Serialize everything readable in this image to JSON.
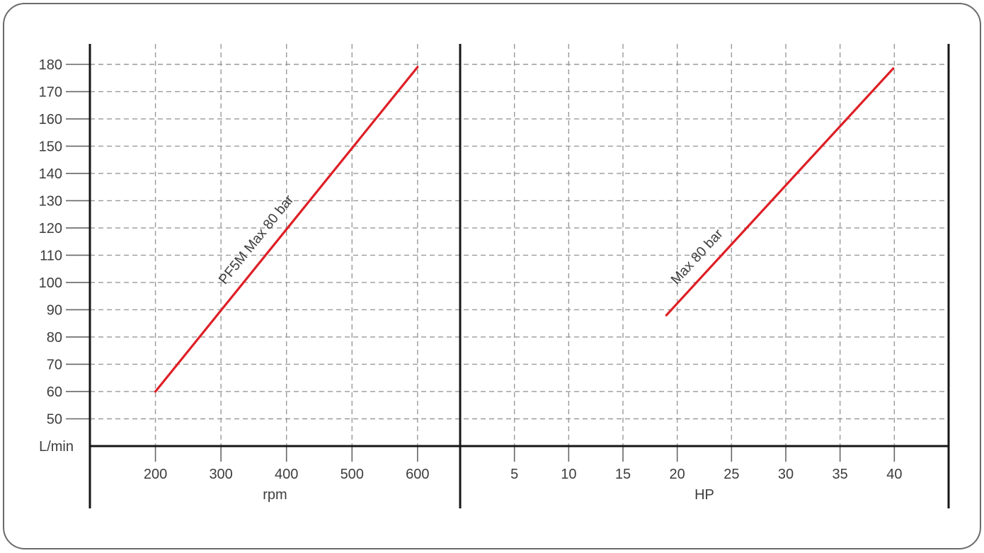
{
  "figure": {
    "background": "#ffffff",
    "border_color": "#6b6b6b",
    "axis_color": "#161616",
    "grid_color": "#999999",
    "tick_color": "#666666",
    "text_color": "#3d3d3d",
    "series_color": "#de1f26"
  },
  "chart_data": {
    "type": "line",
    "title": "",
    "ylabel": "L/min",
    "ylim": [
      40,
      187.5
    ],
    "yticks": [
      50,
      60,
      70,
      80,
      90,
      100,
      110,
      120,
      130,
      140,
      150,
      160,
      170,
      180
    ],
    "grid": true,
    "grid_style": "dashed",
    "legend": "none",
    "panels": [
      {
        "name": "flow-vs-speed",
        "xlabel": "rpm",
        "xlim": [
          100,
          665
        ],
        "xticks": [
          200,
          300,
          400,
          500,
          600
        ],
        "series": [
          {
            "name": "pf5m-max-80-bar",
            "label": "PF5M Max 80 bar",
            "points": [
              [
                200,
                60
              ],
              [
                600,
                179
              ]
            ],
            "label_anchor_t": 0.435,
            "label_offset": 18
          }
        ]
      },
      {
        "name": "flow-vs-power",
        "xlabel": "HP",
        "xlim": [
          0,
          45
        ],
        "xticks": [
          5,
          10,
          15,
          20,
          25,
          30,
          35,
          40
        ],
        "series": [
          {
            "name": "max-80-bar",
            "label": "Max 80 bar",
            "points": [
              [
                19,
                88
              ],
              [
                39.9,
                178.5
              ]
            ],
            "label_anchor_t": 0.19,
            "label_offset": 18
          }
        ]
      }
    ]
  }
}
